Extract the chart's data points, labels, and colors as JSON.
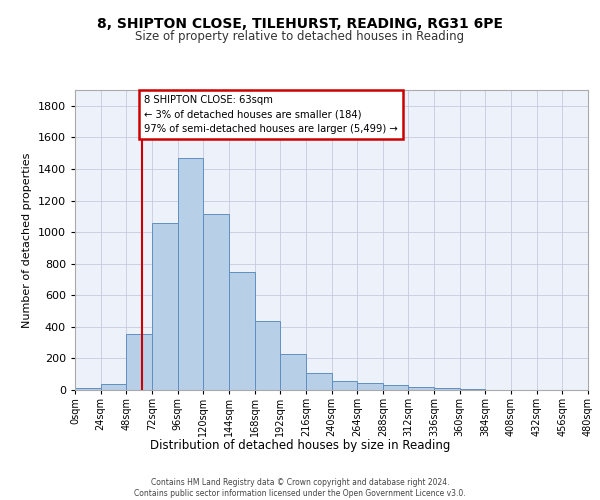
{
  "title_line1": "8, SHIPTON CLOSE, TILEHURST, READING, RG31 6PE",
  "title_line2": "Size of property relative to detached houses in Reading",
  "xlabel": "Distribution of detached houses by size in Reading",
  "ylabel": "Number of detached properties",
  "bar_heights": [
    10,
    35,
    355,
    1060,
    1470,
    1115,
    750,
    435,
    225,
    110,
    55,
    45,
    30,
    20,
    10,
    5,
    3,
    2,
    1,
    1
  ],
  "bin_width": 24,
  "bar_color": "#b8cfe8",
  "bar_edge_color": "#6090c0",
  "annotation_text": "8 SHIPTON CLOSE: 63sqm\n← 3% of detached houses are smaller (184)\n97% of semi-detached houses are larger (5,499) →",
  "annotation_box_edge": "#cc0000",
  "property_line_x": 63,
  "property_line_color": "#cc0000",
  "ylim": [
    0,
    1900
  ],
  "yticks": [
    0,
    200,
    400,
    600,
    800,
    1000,
    1200,
    1400,
    1600,
    1800
  ],
  "xtick_labels": [
    "0sqm",
    "24sqm",
    "48sqm",
    "72sqm",
    "96sqm",
    "120sqm",
    "144sqm",
    "168sqm",
    "192sqm",
    "216sqm",
    "240sqm",
    "264sqm",
    "288sqm",
    "312sqm",
    "336sqm",
    "360sqm",
    "384sqm",
    "408sqm",
    "432sqm",
    "456sqm",
    "480sqm"
  ],
  "footer_text": "Contains HM Land Registry data © Crown copyright and database right 2024.\nContains public sector information licensed under the Open Government Licence v3.0.",
  "bg_color": "#edf1fa",
  "grid_color": "#c5cade"
}
